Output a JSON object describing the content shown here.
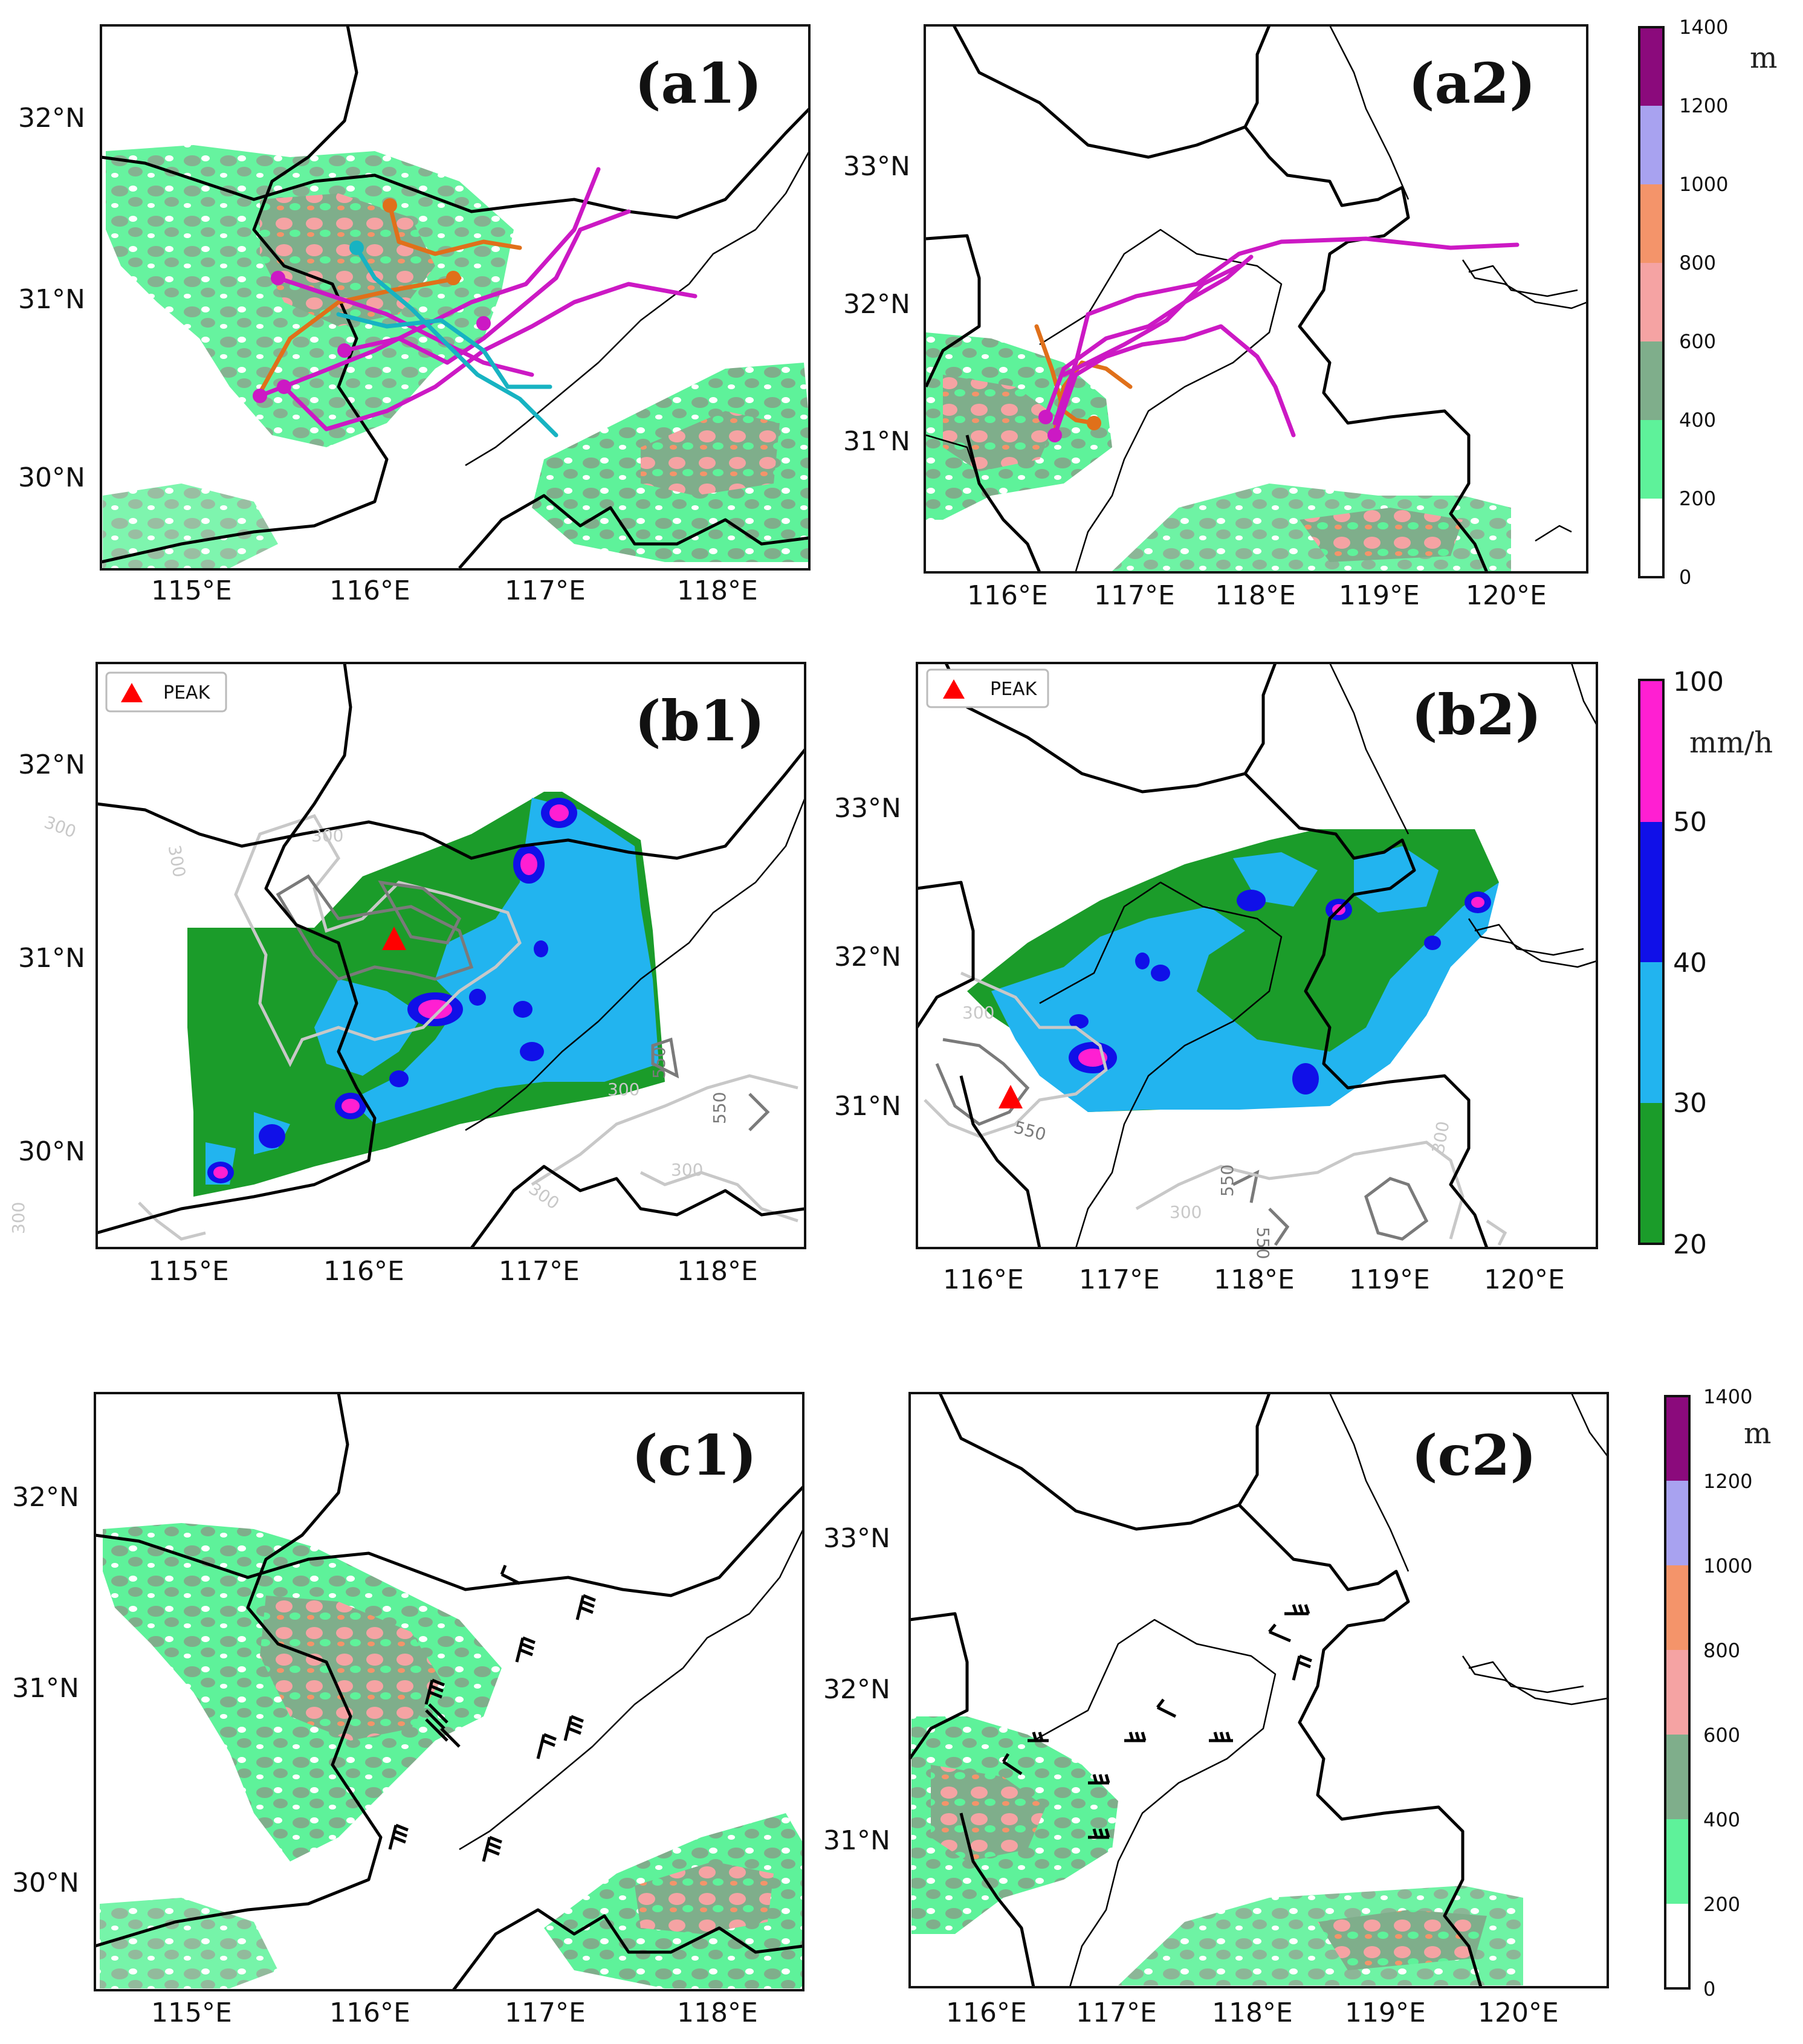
{
  "panels": [
    {
      "id": "a1",
      "label": "(a1)",
      "lat_ticks": [
        "32°N",
        "31°N",
        "30°N"
      ],
      "lon_ticks": [
        "115°E",
        "116°E",
        "117°E",
        "118°E"
      ]
    },
    {
      "id": "a2",
      "label": "(a2)",
      "lat_ticks": [
        "33°N",
        "32°N",
        "31°N"
      ],
      "lon_ticks": [
        "116°E",
        "117°E",
        "118°E",
        "119°E",
        "120°E"
      ]
    },
    {
      "id": "b1",
      "label": "(b1)",
      "lat_ticks": [
        "32°N",
        "31°N",
        "30°N"
      ],
      "lon_ticks": [
        "115°E",
        "116°E",
        "117°E",
        "118°E"
      ],
      "legend": "PEAK",
      "contour_labels": [
        "300",
        "300",
        "300",
        "550",
        "550",
        "300",
        "300",
        "300",
        "300"
      ]
    },
    {
      "id": "b2",
      "label": "(b2)",
      "lat_ticks": [
        "33°N",
        "32°N",
        "31°N"
      ],
      "lon_ticks": [
        "116°E",
        "117°E",
        "118°E",
        "119°E",
        "120°E"
      ],
      "legend": "PEAK",
      "contour_labels": [
        "300",
        "550",
        "550",
        "300",
        "550",
        "300"
      ]
    },
    {
      "id": "c1",
      "label": "(c1)",
      "lat_ticks": [
        "32°N",
        "31°N",
        "30°N"
      ],
      "lon_ticks": [
        "115°E",
        "116°E",
        "117°E",
        "118°E"
      ]
    },
    {
      "id": "c2",
      "label": "(c2)",
      "lat_ticks": [
        "33°N",
        "32°N",
        "31°N"
      ],
      "lon_ticks": [
        "116°E",
        "117°E",
        "118°E",
        "119°E",
        "120°E"
      ]
    }
  ],
  "colorbar_terrain": {
    "unit": "m",
    "ticks": [
      "1400",
      "1200",
      "1000",
      "800",
      "600",
      "400",
      "200",
      "0"
    ],
    "colors": [
      "#8b0a7c",
      "#a8a2f0",
      "#f4946a",
      "#f5a3a3",
      "#7fae8b",
      "#5ef29a",
      "#ffffff"
    ]
  },
  "colorbar_precip": {
    "unit": "mm/h",
    "ticks": [
      "100",
      "50",
      "40",
      "30",
      "20"
    ],
    "colors": [
      "#ff1fd2",
      "#1010e8",
      "#22b4ef",
      "#1b9c2a"
    ]
  },
  "track_colors": {
    "orange": "#e0701a",
    "magenta": "#cc19c4",
    "cyan": "#17b3c2"
  },
  "peak_marker_color": "#ff0000"
}
